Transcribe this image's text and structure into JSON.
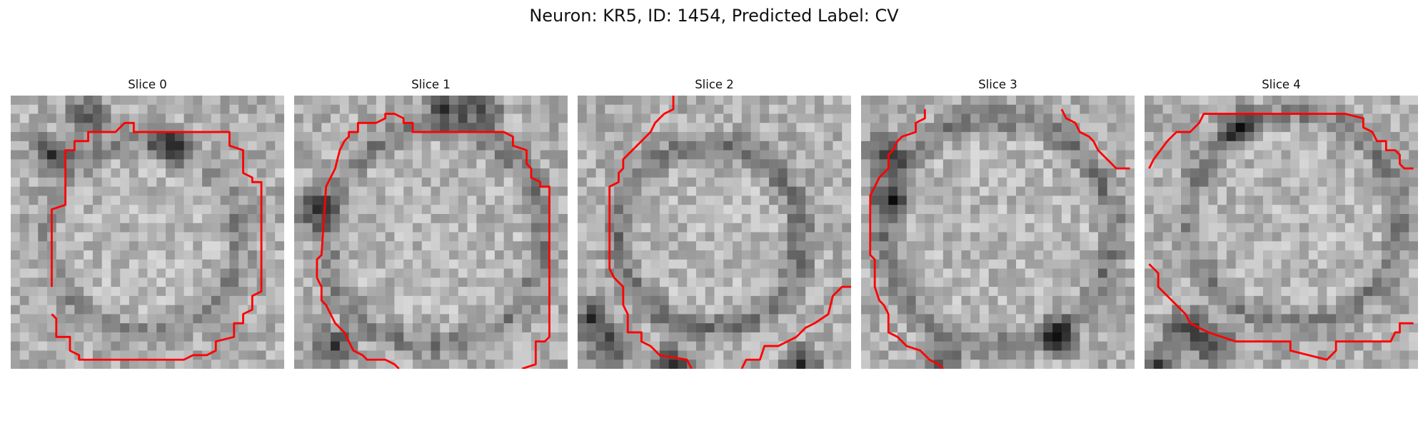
{
  "figure": {
    "title": "Neuron: KR5, ID: 1454, Predicted Label: CV",
    "contour_color": "#ff0000"
  },
  "panels": [
    {
      "title": "Slice 0"
    },
    {
      "title": "Slice 1"
    },
    {
      "title": "Slice 2"
    },
    {
      "title": "Slice 3"
    },
    {
      "title": "Slice 4"
    }
  ]
}
